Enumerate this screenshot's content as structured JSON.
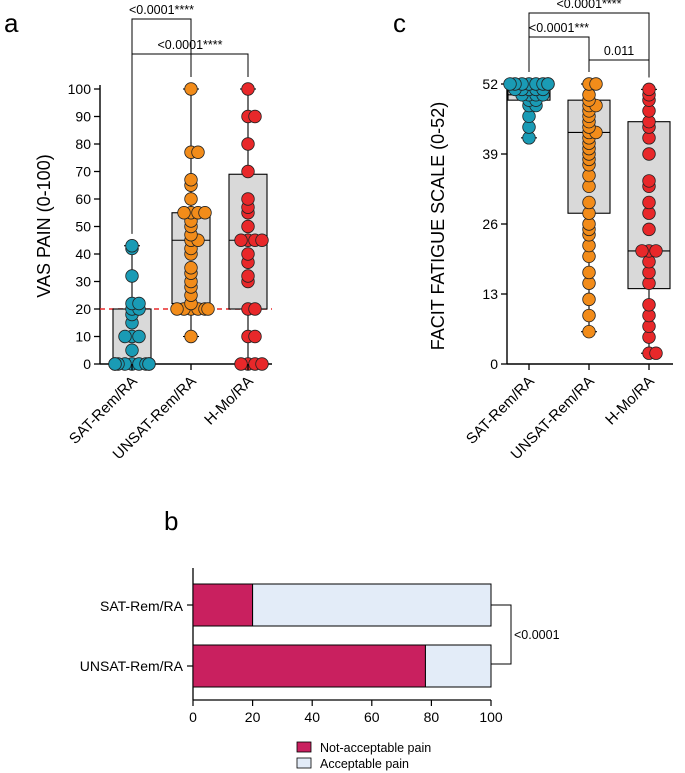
{
  "chart_data": [
    {
      "type": "box-scatter",
      "panel": "a",
      "ylabel": "VAS PAIN (0-100)",
      "ylim": [
        0,
        100
      ],
      "yticks": [
        0,
        10,
        20,
        30,
        40,
        50,
        60,
        70,
        80,
        90,
        100
      ],
      "reference_line": 20,
      "categories": [
        "SAT-Rem/RA",
        "UNSAT-Rem/RA",
        "H-Mo/RA"
      ],
      "colors": [
        "#1a9bb5",
        "#f28c1a",
        "#e8282a"
      ],
      "boxes": [
        {
          "min": 0,
          "q1": 0,
          "median": 0,
          "q3": 20,
          "max": 43
        },
        {
          "min": 10,
          "q1": 22,
          "median": 45,
          "q3": 55,
          "max": 100
        },
        {
          "min": 0,
          "q1": 20,
          "median": 45,
          "q3": 69,
          "max": 100
        }
      ],
      "points": [
        [
          0,
          0,
          0,
          0,
          0,
          0,
          0,
          0,
          0,
          5,
          10,
          10,
          10,
          15,
          18,
          20,
          20,
          22,
          22,
          32,
          42,
          43
        ],
        [
          10,
          20,
          20,
          20,
          20,
          20,
          20,
          22,
          25,
          28,
          30,
          33,
          35,
          40,
          42,
          45,
          45,
          47,
          50,
          52,
          55,
          55,
          55,
          55,
          60,
          65,
          67,
          77,
          77,
          100
        ],
        [
          0,
          0,
          0,
          0,
          10,
          10,
          20,
          20,
          30,
          32,
          37,
          40,
          45,
          45,
          45,
          45,
          50,
          55,
          57,
          60,
          70,
          80,
          90,
          90,
          100
        ]
      ],
      "comparisons": [
        {
          "from": 0,
          "to": 1,
          "label": "<0.0001****"
        },
        {
          "from": 0,
          "to": 2,
          "label": "<0.0001****"
        }
      ]
    },
    {
      "type": "box-scatter",
      "panel": "c",
      "ylabel": "FACIT FATIGUE SCALE (0-52)",
      "ylim": [
        0,
        52
      ],
      "yticks": [
        0,
        13,
        26,
        39,
        52
      ],
      "categories": [
        "SAT-Rem/RA",
        "UNSAT-Rem/RA",
        "H-Mo/RA"
      ],
      "colors": [
        "#1a9bb5",
        "#f28c1a",
        "#e8282a"
      ],
      "boxes": [
        {
          "min": 42,
          "q1": 49,
          "median": 50,
          "q3": 52,
          "max": 52
        },
        {
          "min": 6,
          "q1": 28,
          "median": 43,
          "q3": 49,
          "max": 52
        },
        {
          "min": 2,
          "q1": 14,
          "median": 21,
          "q3": 45,
          "max": 51
        }
      ],
      "points": [
        [
          42,
          44,
          46,
          48,
          48,
          49,
          49,
          50,
          50,
          50,
          50,
          51,
          51,
          51,
          51,
          51,
          52,
          52,
          52,
          52,
          52,
          52,
          52,
          52
        ],
        [
          6,
          9,
          12,
          15,
          17,
          20,
          22,
          24,
          25,
          26,
          28,
          30,
          33,
          35,
          37,
          38,
          39,
          40,
          41,
          42,
          43,
          43,
          44,
          45,
          46,
          47,
          48,
          48,
          49,
          50,
          52,
          52
        ],
        [
          2,
          2,
          5,
          7,
          9,
          11,
          15,
          17,
          19,
          21,
          21,
          21,
          25,
          28,
          30,
          33,
          34,
          39,
          42,
          44,
          45,
          47,
          49,
          50,
          51
        ]
      ],
      "comparisons": [
        {
          "from": 0,
          "to": 1,
          "label": "<0.0001***"
        },
        {
          "from": 1,
          "to": 2,
          "label": "0.011"
        },
        {
          "from": 0,
          "to": 2,
          "label": "<0.0001****"
        }
      ]
    },
    {
      "type": "stacked-barh",
      "panel": "b",
      "categories": [
        "SAT-Rem/RA",
        "UNSAT-Rem/RA"
      ],
      "xlim": [
        0,
        100
      ],
      "xticks": [
        0,
        20,
        40,
        60,
        80,
        100
      ],
      "series": [
        {
          "name": "Not-acceptable pain",
          "color": "#c9205f",
          "values": [
            20,
            78
          ]
        },
        {
          "name": "Acceptable pain",
          "color": "#e3ecf8",
          "values": [
            80,
            22
          ]
        }
      ],
      "comparison_label": "<0.0001"
    }
  ]
}
